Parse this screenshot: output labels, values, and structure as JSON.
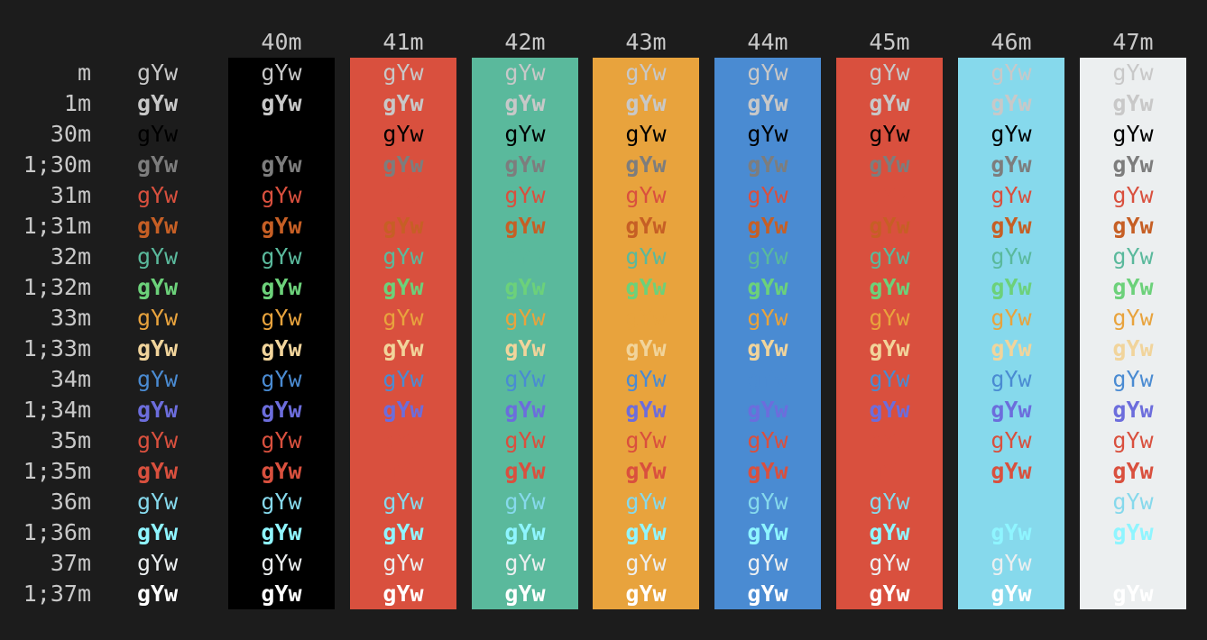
{
  "sample_text": "gYw",
  "headers": [
    "40m",
    "41m",
    "42m",
    "43m",
    "44m",
    "45m",
    "46m",
    "47m"
  ],
  "background_colors": [
    "#000000",
    "#d9503e",
    "#5ab99c",
    "#e8a33d",
    "#4a8bd2",
    "#d9503e",
    "#86d9ec",
    "#eceff0"
  ],
  "rows": [
    {
      "label": "m",
      "bold": false,
      "fg": "#c8c8c8"
    },
    {
      "label": "1m",
      "bold": true,
      "fg": "#c8c8c8"
    },
    {
      "label": "30m",
      "bold": false,
      "fg": "#000000"
    },
    {
      "label": "1;30m",
      "bold": true,
      "fg": "#7d7d7d"
    },
    {
      "label": "31m",
      "bold": false,
      "fg": "#d9503e"
    },
    {
      "label": "1;31m",
      "bold": true,
      "fg": "#c65f25"
    },
    {
      "label": "32m",
      "bold": false,
      "fg": "#5ab99c"
    },
    {
      "label": "1;32m",
      "bold": true,
      "fg": "#6cd17a"
    },
    {
      "label": "33m",
      "bold": false,
      "fg": "#e8a33d"
    },
    {
      "label": "1;33m",
      "bold": true,
      "fg": "#f1d49b"
    },
    {
      "label": "34m",
      "bold": false,
      "fg": "#4a8bd2"
    },
    {
      "label": "1;34m",
      "bold": true,
      "fg": "#6c6ddc"
    },
    {
      "label": "35m",
      "bold": false,
      "fg": "#d9503e"
    },
    {
      "label": "1;35m",
      "bold": true,
      "fg": "#d9503e"
    },
    {
      "label": "36m",
      "bold": false,
      "fg": "#86d9ec"
    },
    {
      "label": "1;36m",
      "bold": true,
      "fg": "#8ff5ff"
    },
    {
      "label": "37m",
      "bold": false,
      "fg": "#eceff0"
    },
    {
      "label": "1;37m",
      "bold": true,
      "fg": "#ffffff"
    }
  ]
}
